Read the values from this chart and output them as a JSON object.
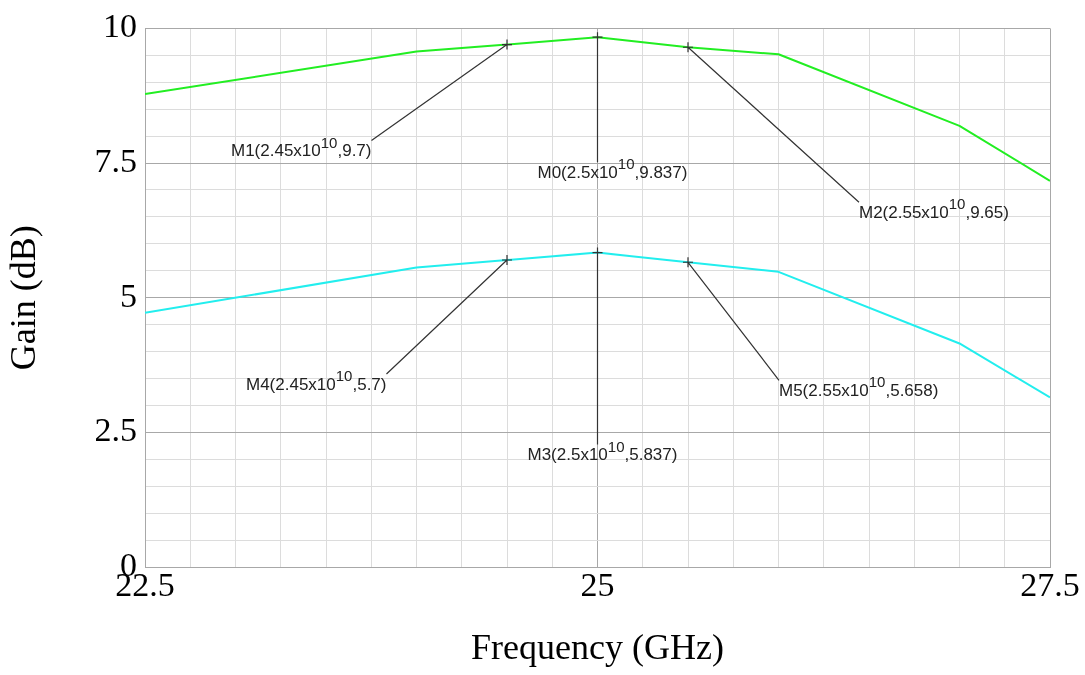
{
  "chart_data": {
    "type": "line",
    "xlabel": "Frequency (GHz)",
    "ylabel": "Gain (dB)",
    "x": [
      22.5,
      24,
      24.5,
      25,
      25.5,
      26,
      27,
      27.5
    ],
    "series": [
      {
        "color": "#22ee22",
        "values": [
          8.78,
          9.57,
          9.7,
          9.837,
          9.65,
          9.52,
          8.19,
          7.17
        ]
      },
      {
        "color": "#22eeee",
        "values": [
          4.72,
          5.56,
          5.7,
          5.837,
          5.658,
          5.48,
          4.15,
          3.15
        ]
      }
    ],
    "xlim": [
      22.5,
      27.5
    ],
    "xticks": [
      22.5,
      {
        "value": 22.75,
        "label": null
      },
      {
        "value": 23,
        "label": null
      },
      {
        "value": 23.25,
        "label": null
      },
      {
        "value": 23.5,
        "label": null
      },
      {
        "value": 23.75,
        "label": null
      },
      {
        "value": 24,
        "label": null
      },
      {
        "value": 24.25,
        "label": null
      },
      {
        "value": 24.5,
        "label": null
      },
      {
        "value": 24.75,
        "label": null
      },
      25,
      {
        "value": 25.25,
        "label": null
      },
      {
        "value": 25.5,
        "label": null
      },
      {
        "value": 25.75,
        "label": null
      },
      {
        "value": 26,
        "label": null
      },
      {
        "value": 26.25,
        "label": null
      },
      {
        "value": 26.5,
        "label": null
      },
      {
        "value": 26.75,
        "label": null
      },
      {
        "value": 27,
        "label": null
      },
      {
        "value": 27.25,
        "label": null
      },
      27.5
    ],
    "ylim": [
      0,
      10
    ],
    "yticks": [
      0,
      {
        "value": 0.5,
        "label": null
      },
      {
        "value": 1,
        "label": null
      },
      {
        "value": 1.5,
        "label": null
      },
      {
        "value": 2,
        "label": null
      },
      2.5,
      {
        "value": 3,
        "label": null
      },
      {
        "value": 3.5,
        "label": null
      },
      {
        "value": 4,
        "label": null
      },
      {
        "value": 4.5,
        "label": null
      },
      5,
      {
        "value": 5.5,
        "label": null
      },
      {
        "value": 6,
        "label": null
      },
      {
        "value": 6.5,
        "label": null
      },
      {
        "value": 7,
        "label": null
      },
      7.5,
      {
        "value": 8,
        "label": null
      },
      {
        "value": 8.5,
        "label": null
      },
      {
        "value": 9,
        "label": null
      },
      {
        "value": 9.5,
        "label": null
      },
      10
    ],
    "grid": true,
    "line_style": "solid",
    "annotations": [
      {
        "text": "M0(2.5x10$^{10}$,9.837)",
        "x": 25,
        "y": 9.837
      },
      {
        "text": "M1(2.45x10$^{10}$,9.7)",
        "x": 24.5,
        "y": 9.7
      },
      {
        "text": "M2(2.55x10$^{10}$,9.65)",
        "x": 25.5,
        "y": 9.65
      },
      {
        "text": "M3(2.5x10$^{10}$,5.837)",
        "x": 25,
        "y": 5.837
      },
      {
        "text": "M4(2.45x10$^{10}$,5.7)",
        "x": 24.5,
        "y": 5.7
      },
      {
        "text": "M5(2.55x10$^{10}$,5.658)",
        "x": 25.5,
        "y": 5.658
      }
    ]
  }
}
